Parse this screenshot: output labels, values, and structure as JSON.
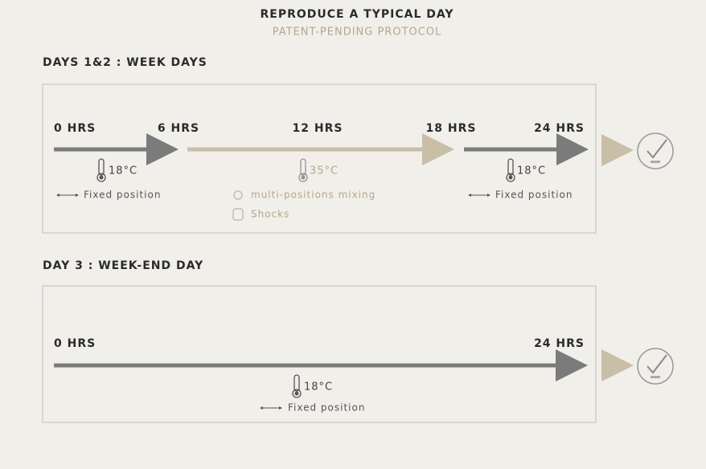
{
  "header": {
    "title": "REPRODUCE A TYPICAL DAY",
    "subtitle": "PATENT-PENDING PROTOCOL"
  },
  "sections": [
    {
      "label": "DAYS 1&2 : WEEK DAYS",
      "hours": [
        "0 HRS",
        "6 HRS",
        "12 HRS",
        "18 HRS",
        "24 HRS"
      ],
      "phases": [
        {
          "temperature": "18°C",
          "notes": [
            "Fixed position"
          ]
        },
        {
          "temperature": "35°C",
          "notes": [
            "multi-positions mixing",
            "Shocks"
          ]
        },
        {
          "temperature": "18°C",
          "notes": [
            "Fixed position"
          ]
        }
      ]
    },
    {
      "label": "DAY 3 : WEEK-END DAY",
      "hours": [
        "0 HRS",
        "24 HRS"
      ],
      "phases": [
        {
          "temperature": "18°C",
          "notes": [
            "Fixed position"
          ]
        }
      ]
    }
  ]
}
